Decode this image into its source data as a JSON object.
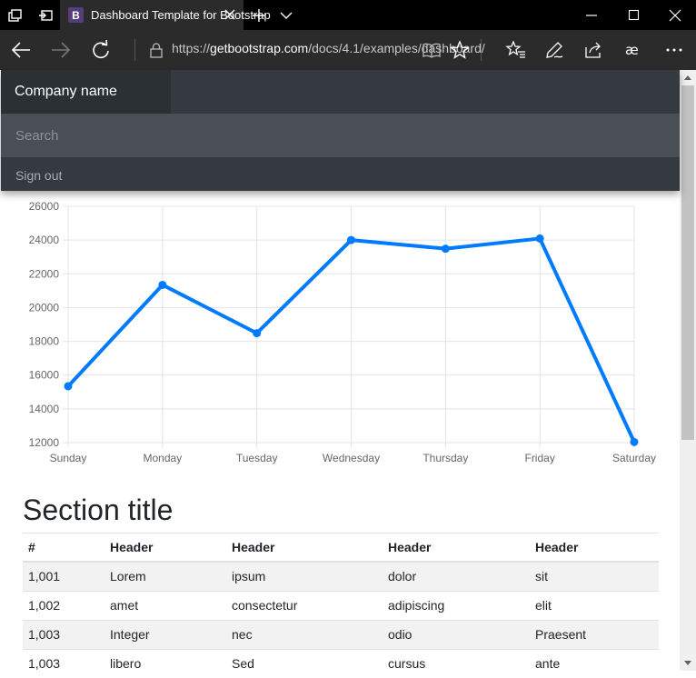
{
  "browser": {
    "tab_title": "Dashboard Template for Bootstrap",
    "favicon_letter": "B",
    "url_prefix": "https://",
    "url_host": "getbootstrap.com",
    "url_path": "/docs/4.1/examples/dashboard/"
  },
  "navbar": {
    "brand": "Company name",
    "search_placeholder": "Search",
    "sign_out": "Sign out"
  },
  "chart_data": {
    "type": "line",
    "categories": [
      "Sunday",
      "Monday",
      "Tuesday",
      "Wednesday",
      "Thursday",
      "Friday",
      "Saturday"
    ],
    "series": [
      {
        "values": [
          15339,
          21345,
          18483,
          24003,
          23489,
          24092,
          12034
        ],
        "color": "#007bff"
      }
    ],
    "ylim": [
      12000,
      26000
    ],
    "yticks": [
      12000,
      14000,
      16000,
      18000,
      20000,
      22000,
      24000,
      26000
    ],
    "grid": true,
    "legend": "none"
  },
  "section_title": "Section title",
  "table": {
    "headers": [
      "#",
      "Header",
      "Header",
      "Header",
      "Header"
    ],
    "rows": [
      [
        "1,001",
        "Lorem",
        "ipsum",
        "dolor",
        "sit"
      ],
      [
        "1,002",
        "amet",
        "consectetur",
        "adipiscing",
        "elit"
      ],
      [
        "1,003",
        "Integer",
        "nec",
        "odio",
        "Praesent"
      ],
      [
        "1,003",
        "libero",
        "Sed",
        "cursus",
        "ante"
      ]
    ]
  },
  "colors": {
    "accent": "#007bff",
    "nav_dark": "#343a40",
    "brand_bg": "#2b3035"
  }
}
